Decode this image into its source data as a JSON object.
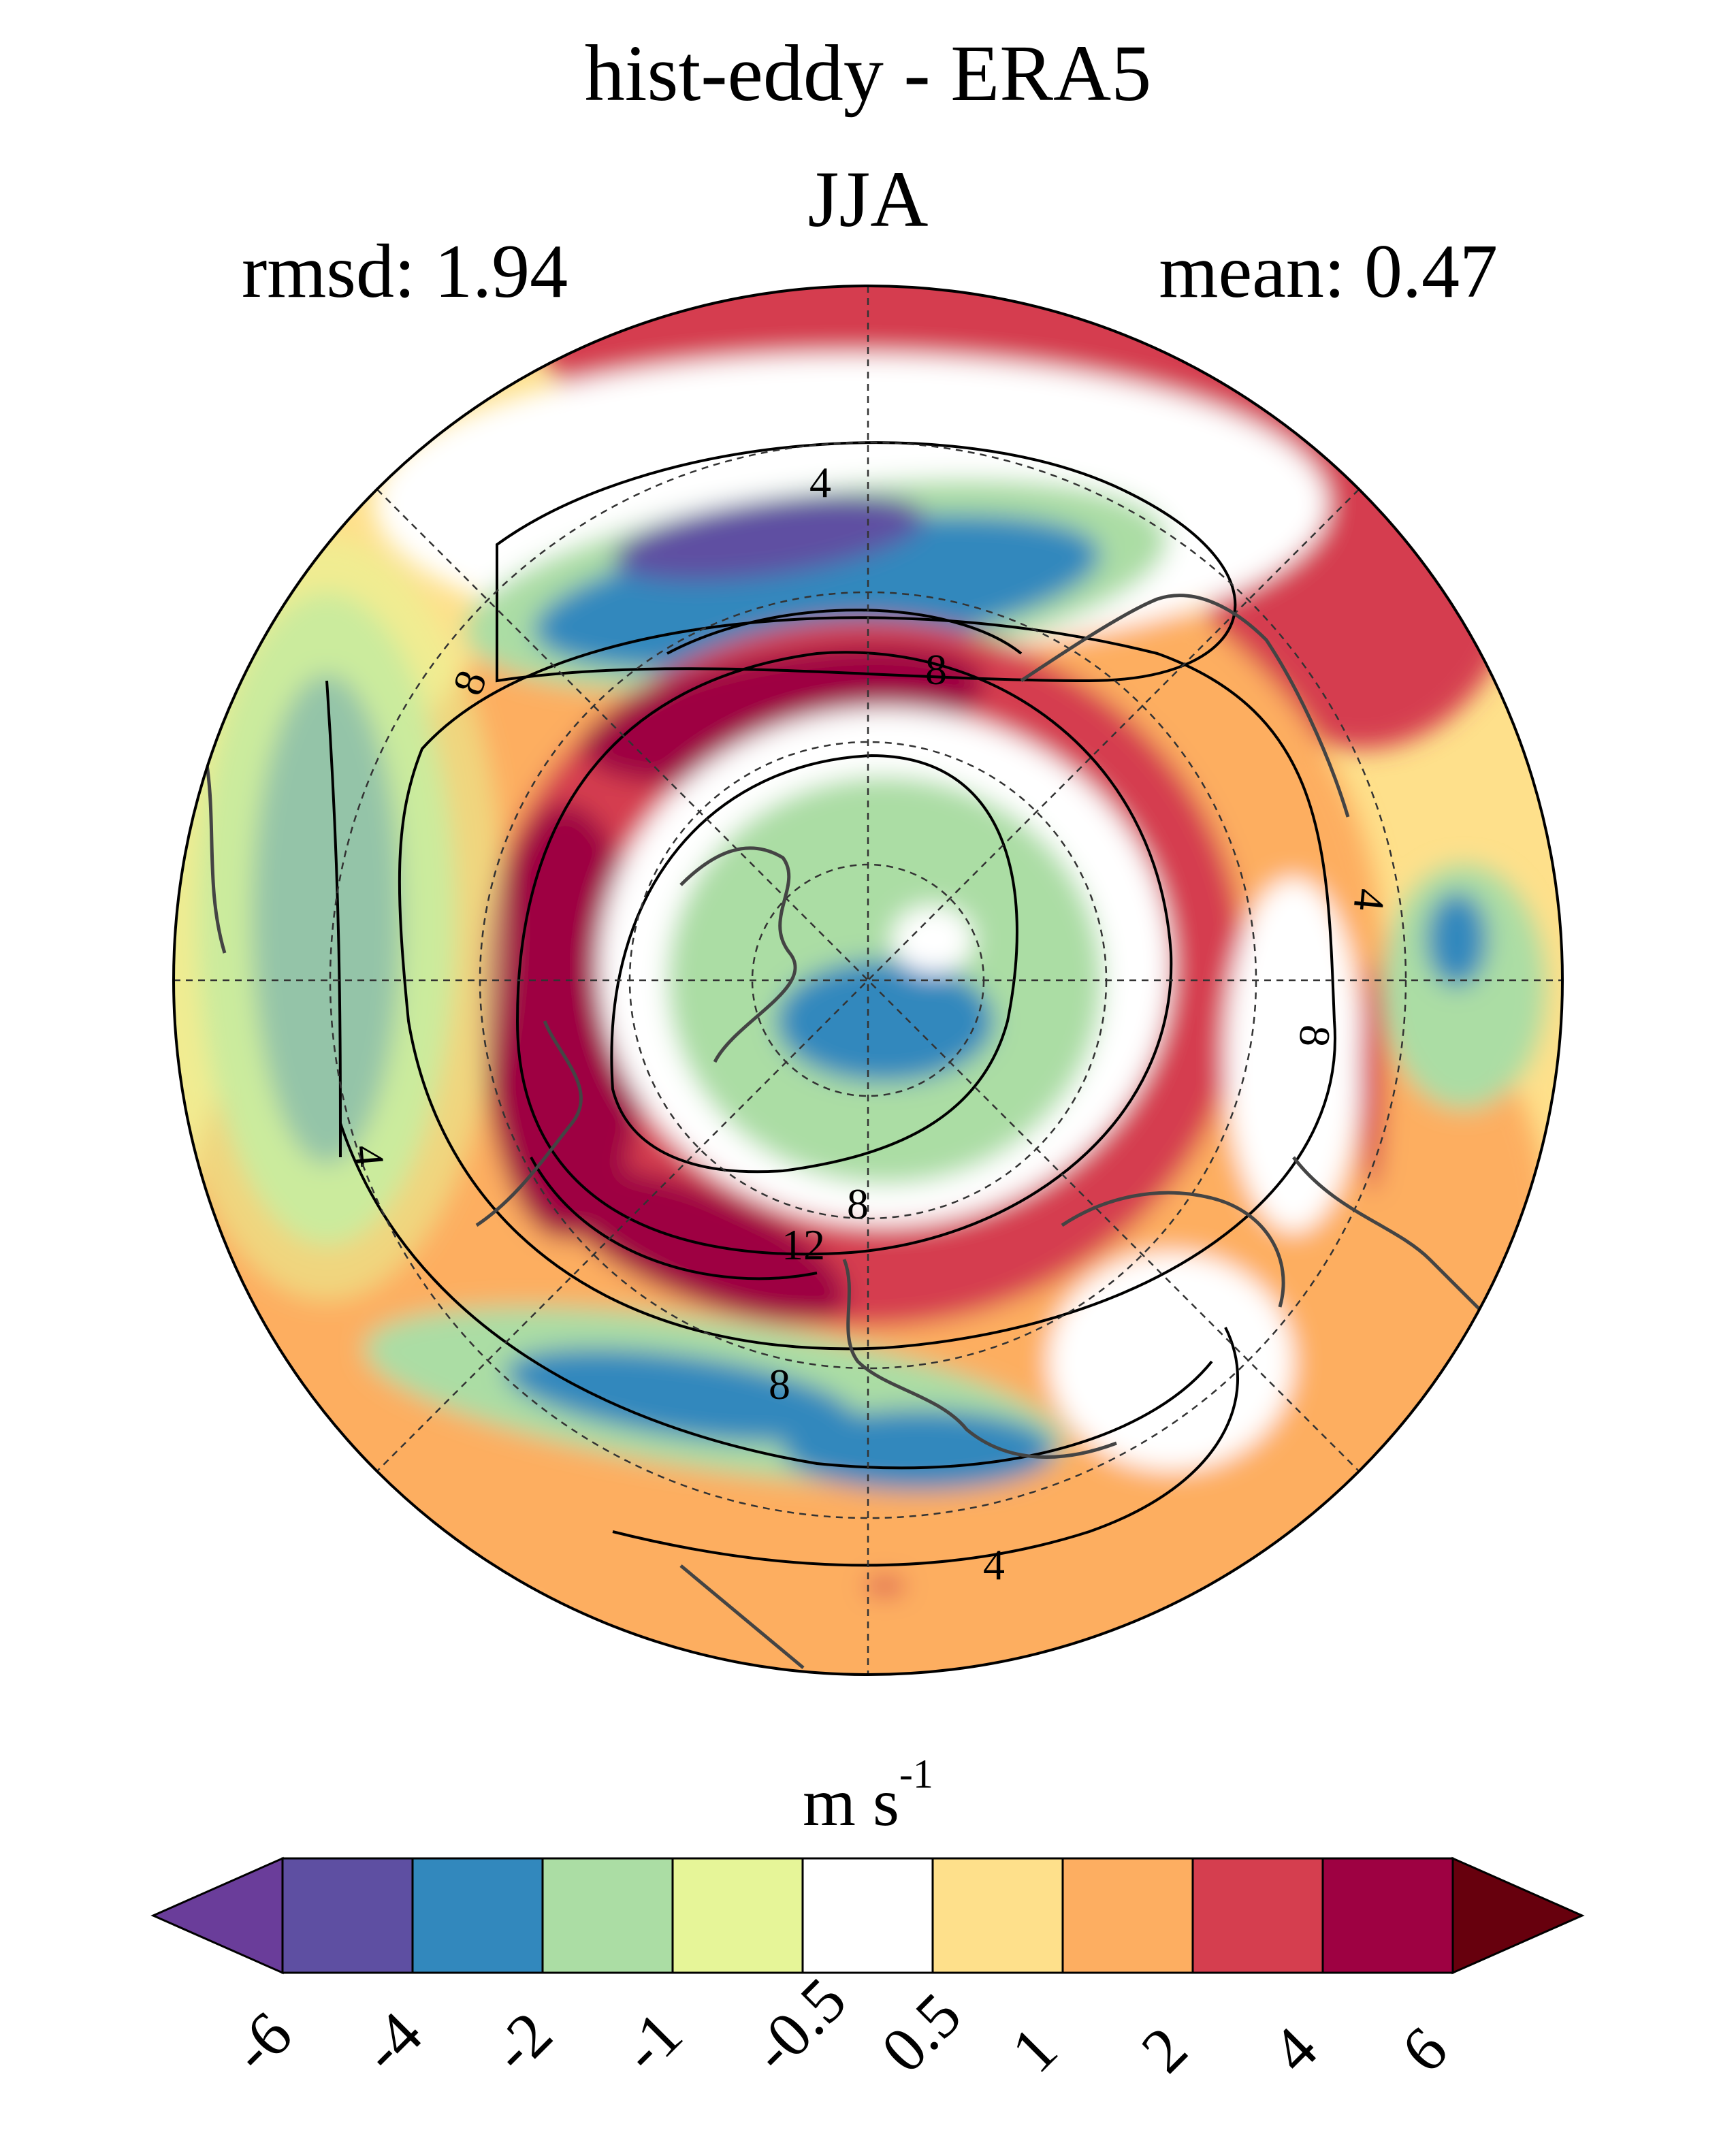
{
  "title": "hist-eddy - ERA5",
  "season": "JJA",
  "rmsd_label": "rmsd: 1.94",
  "mean_label": "mean: 0.47",
  "contour_labels": [
    "4",
    "8",
    "8",
    "4",
    "8",
    "4",
    "8",
    "12",
    "8",
    "4"
  ],
  "colorbar": {
    "units_base": "m s",
    "units_exp": "-1",
    "levels": [
      "-6",
      "-4",
      "-2",
      "-1",
      "-0.5",
      "0.5",
      "1",
      "2",
      "4",
      "6"
    ],
    "colors": [
      "#6a3d9a",
      "#5e4fa2",
      "#3288bd",
      "#abdda4",
      "#e6f598",
      "#ffffff",
      "#fee08b",
      "#fdae61",
      "#d53e4f",
      "#9e0142",
      "#67000d"
    ]
  }
}
